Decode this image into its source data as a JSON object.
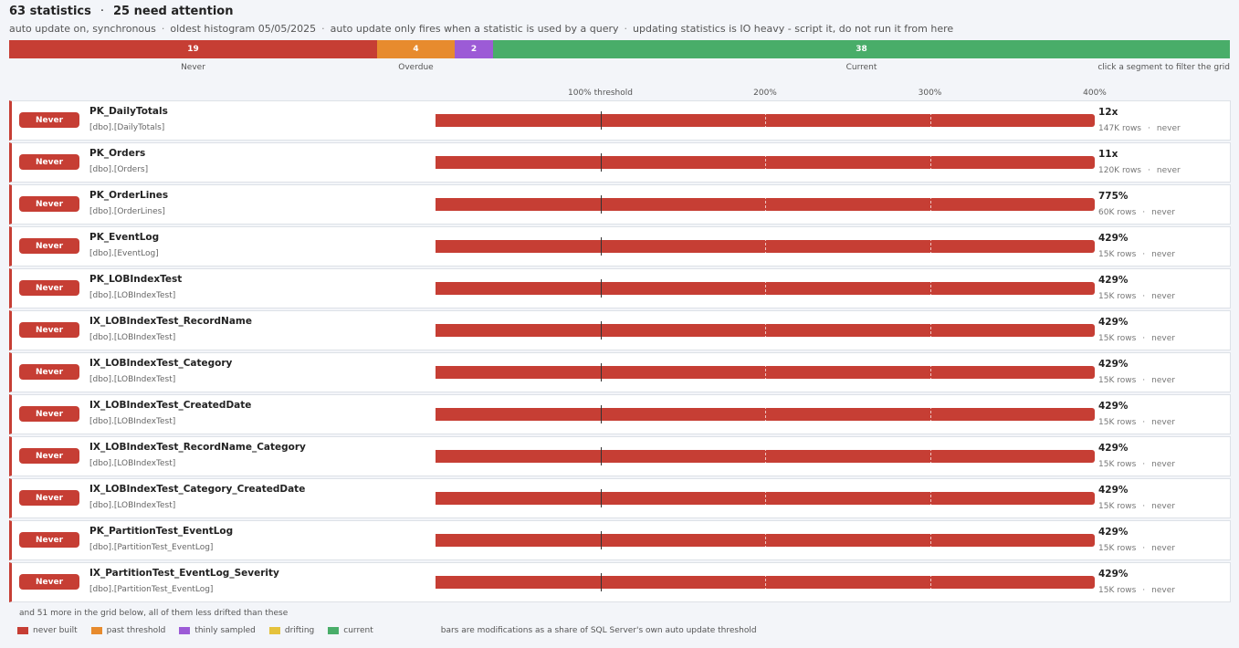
{
  "header": {
    "total": "63 statistics",
    "separator": "·",
    "attention": "25 need attention"
  },
  "subline": [
    "auto update on, synchronous",
    "oldest histogram 05/05/2025",
    "auto update only fires when a statistic is used by a query",
    "updating statistics is IO heavy - script it, do not run it from here"
  ],
  "segments": [
    {
      "count": 19,
      "label": "Never",
      "color": "#c63e34"
    },
    {
      "count": 4,
      "label": "Overdue",
      "color": "#e78b2e"
    },
    {
      "count": 2,
      "label": "",
      "color": "#9c5bd6"
    },
    {
      "count": 38,
      "label": "Current",
      "color": "#49ad69"
    }
  ],
  "filter_hint": "click a segment to filter the grid",
  "axis": {
    "labels": [
      {
        "text": "100% threshold",
        "pct": 100
      },
      {
        "text": "200%",
        "pct": 200
      },
      {
        "text": "300%",
        "pct": 300
      },
      {
        "text": "400%",
        "pct": 400
      }
    ],
    "max_pct": 400
  },
  "rows": [
    {
      "status": "Never",
      "name": "PK_DailyTotals",
      "schema": "[dbo].[DailyTotals]",
      "pct_label": "12x",
      "pct": 1200,
      "rows": "147K rows",
      "last": "never"
    },
    {
      "status": "Never",
      "name": "PK_Orders",
      "schema": "[dbo].[Orders]",
      "pct_label": "11x",
      "pct": 1100,
      "rows": "120K rows",
      "last": "never"
    },
    {
      "status": "Never",
      "name": "PK_OrderLines",
      "schema": "[dbo].[OrderLines]",
      "pct_label": "775%",
      "pct": 775,
      "rows": "60K rows",
      "last": "never"
    },
    {
      "status": "Never",
      "name": "PK_EventLog",
      "schema": "[dbo].[EventLog]",
      "pct_label": "429%",
      "pct": 429,
      "rows": "15K rows",
      "last": "never"
    },
    {
      "status": "Never",
      "name": "PK_LOBIndexTest",
      "schema": "[dbo].[LOBIndexTest]",
      "pct_label": "429%",
      "pct": 429,
      "rows": "15K rows",
      "last": "never"
    },
    {
      "status": "Never",
      "name": "IX_LOBIndexTest_RecordName",
      "schema": "[dbo].[LOBIndexTest]",
      "pct_label": "429%",
      "pct": 429,
      "rows": "15K rows",
      "last": "never"
    },
    {
      "status": "Never",
      "name": "IX_LOBIndexTest_Category",
      "schema": "[dbo].[LOBIndexTest]",
      "pct_label": "429%",
      "pct": 429,
      "rows": "15K rows",
      "last": "never"
    },
    {
      "status": "Never",
      "name": "IX_LOBIndexTest_CreatedDate",
      "schema": "[dbo].[LOBIndexTest]",
      "pct_label": "429%",
      "pct": 429,
      "rows": "15K rows",
      "last": "never"
    },
    {
      "status": "Never",
      "name": "IX_LOBIndexTest_RecordName_Category",
      "schema": "[dbo].[LOBIndexTest]",
      "pct_label": "429%",
      "pct": 429,
      "rows": "15K rows",
      "last": "never"
    },
    {
      "status": "Never",
      "name": "IX_LOBIndexTest_Category_CreatedDate",
      "schema": "[dbo].[LOBIndexTest]",
      "pct_label": "429%",
      "pct": 429,
      "rows": "15K rows",
      "last": "never"
    },
    {
      "status": "Never",
      "name": "PK_PartitionTest_EventLog",
      "schema": "[dbo].[PartitionTest_EventLog]",
      "pct_label": "429%",
      "pct": 429,
      "rows": "15K rows",
      "last": "never"
    },
    {
      "status": "Never",
      "name": "IX_PartitionTest_EventLog_Severity",
      "schema": "[dbo].[PartitionTest_EventLog]",
      "pct_label": "429%",
      "pct": 429,
      "rows": "15K rows",
      "last": "never"
    }
  ],
  "more_text": "and 51 more in the grid below, all of them less drifted than these",
  "legend": [
    {
      "label": "never built",
      "color": "#c63e34"
    },
    {
      "label": "past threshold",
      "color": "#e78b2e"
    },
    {
      "label": "thinly sampled",
      "color": "#9c5bd6"
    },
    {
      "label": "drifting",
      "color": "#e5c23c"
    },
    {
      "label": "current",
      "color": "#49ad69"
    }
  ],
  "legend_note": "bars are modifications as a share of SQL Server's own auto update threshold"
}
